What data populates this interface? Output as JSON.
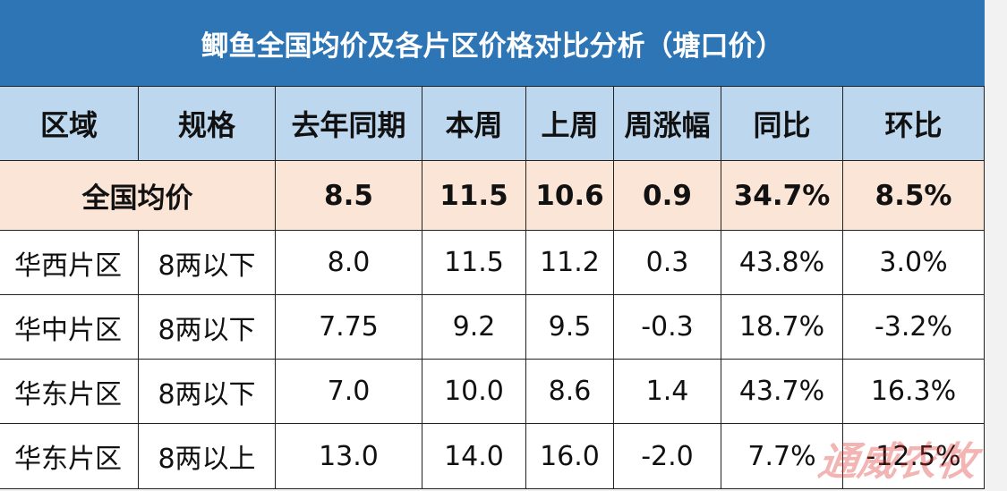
{
  "title": "鲫鱼全国均价及各片区价格对比分析（塘口价）",
  "table": {
    "header": [
      "区域",
      "规格",
      "去年同期",
      "本周",
      "上周",
      "周涨幅",
      "同比",
      "环比"
    ],
    "national": {
      "label": "全国均价",
      "cells": [
        "8.5",
        "11.5",
        "10.6",
        "0.9",
        "34.7%",
        "8.5%"
      ]
    },
    "rows": [
      [
        "华西片区",
        "8两以下",
        "8.0",
        "11.5",
        "11.2",
        "0.3",
        "43.8%",
        "3.0%"
      ],
      [
        "华中片区",
        "8两以下",
        "7.75",
        "9.2",
        "9.5",
        "-0.3",
        "18.7%",
        "-3.2%"
      ],
      [
        "华东片区",
        "8两以下",
        "7.0",
        "10.0",
        "8.6",
        "1.4",
        "43.7%",
        "16.3%"
      ],
      [
        "华东片区",
        "8两以上",
        "13.0",
        "14.0",
        "16.0",
        "-2.0",
        "7.7%",
        "-12.5%"
      ]
    ]
  },
  "watermark": "通威农牧"
}
